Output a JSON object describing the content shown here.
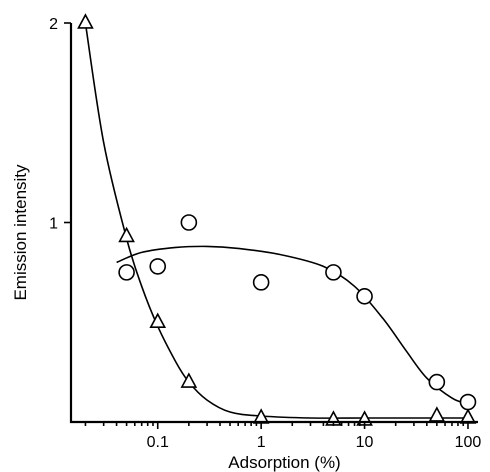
{
  "chart_data": {
    "type": "scatter",
    "title": "",
    "xlabel": "Adsorption (%)",
    "ylabel": "Emission intensity",
    "xscale": "log",
    "xlim": [
      0.0145,
      125
    ],
    "ylim": [
      0,
      2
    ],
    "x_ticks": [
      0.1,
      1,
      10,
      100
    ],
    "x_tick_labels": [
      "0.1",
      "1",
      "10",
      "100"
    ],
    "y_ticks": [
      1,
      2
    ],
    "y_tick_labels": [
      "1",
      "2"
    ],
    "grid": false,
    "legend": "none",
    "series": [
      {
        "marker": "triangle",
        "points": [
          {
            "x": 0.02,
            "y": 2.0
          },
          {
            "x": 0.05,
            "y": 0.93
          },
          {
            "x": 0.1,
            "y": 0.5
          },
          {
            "x": 0.2,
            "y": 0.2
          },
          {
            "x": 1,
            "y": 0.02
          },
          {
            "x": 5,
            "y": 0.01
          },
          {
            "x": 10,
            "y": 0.01
          },
          {
            "x": 50,
            "y": 0.03
          },
          {
            "x": 100,
            "y": 0.02
          }
        ],
        "fit_curve": [
          {
            "x": 0.02,
            "y": 2.0
          },
          {
            "x": 0.03,
            "y": 1.4
          },
          {
            "x": 0.05,
            "y": 0.92
          },
          {
            "x": 0.07,
            "y": 0.68
          },
          {
            "x": 0.1,
            "y": 0.48
          },
          {
            "x": 0.15,
            "y": 0.3
          },
          {
            "x": 0.2,
            "y": 0.2
          },
          {
            "x": 0.3,
            "y": 0.11
          },
          {
            "x": 0.5,
            "y": 0.05
          },
          {
            "x": 1,
            "y": 0.03
          },
          {
            "x": 3,
            "y": 0.02
          },
          {
            "x": 10,
            "y": 0.02
          },
          {
            "x": 30,
            "y": 0.02
          },
          {
            "x": 100,
            "y": 0.02
          }
        ]
      },
      {
        "marker": "circle",
        "points": [
          {
            "x": 0.05,
            "y": 0.75
          },
          {
            "x": 0.1,
            "y": 0.78
          },
          {
            "x": 0.2,
            "y": 1.0
          },
          {
            "x": 1,
            "y": 0.7
          },
          {
            "x": 5,
            "y": 0.75
          },
          {
            "x": 10,
            "y": 0.63
          },
          {
            "x": 50,
            "y": 0.2
          },
          {
            "x": 100,
            "y": 0.1
          }
        ],
        "fit_curve": [
          {
            "x": 0.04,
            "y": 0.8
          },
          {
            "x": 0.07,
            "y": 0.85
          },
          {
            "x": 0.15,
            "y": 0.875
          },
          {
            "x": 0.3,
            "y": 0.88
          },
          {
            "x": 0.6,
            "y": 0.87
          },
          {
            "x": 1.5,
            "y": 0.84
          },
          {
            "x": 4,
            "y": 0.78
          },
          {
            "x": 8,
            "y": 0.68
          },
          {
            "x": 15,
            "y": 0.52
          },
          {
            "x": 25,
            "y": 0.36
          },
          {
            "x": 40,
            "y": 0.22
          },
          {
            "x": 70,
            "y": 0.12
          },
          {
            "x": 100,
            "y": 0.09
          }
        ]
      }
    ]
  }
}
